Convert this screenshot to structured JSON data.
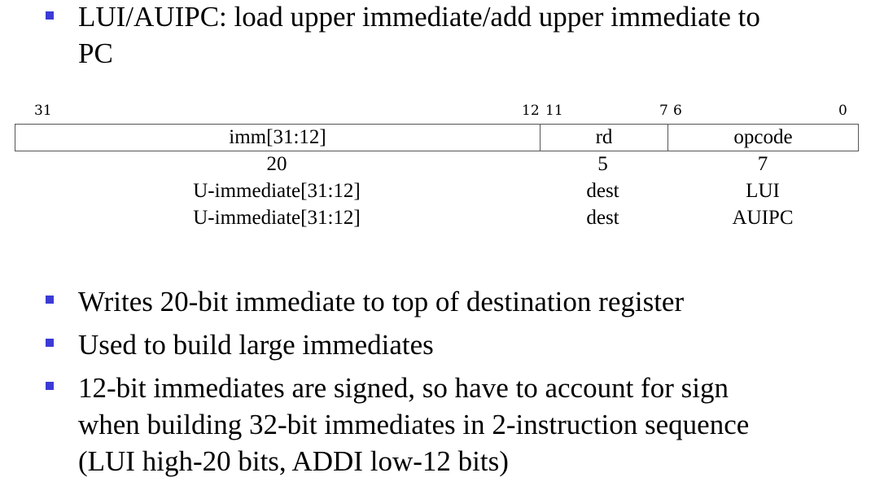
{
  "title_bullet": "LUI/AUIPC: load upper immediate/add upper immediate to\nPC",
  "format": {
    "bit_labels": [
      "31",
      "12",
      "11",
      "7",
      "6",
      "0"
    ],
    "fields": [
      "imm[31:12]",
      "rd",
      "opcode"
    ],
    "widths": [
      "20",
      "5",
      "7"
    ],
    "rows": [
      [
        "U-immediate[31:12]",
        "dest",
        "LUI"
      ],
      [
        "U-immediate[31:12]",
        "dest",
        "AUIPC"
      ]
    ]
  },
  "bullets": [
    "Writes 20-bit immediate to top of destination register",
    "Used to build large immediates",
    "12-bit immediates are signed, so have to account for sign\nwhen building 32-bit immediates in 2-instruction sequence\n(LUI high-20 bits, ADDI low-12 bits)"
  ],
  "colors": {
    "bullet": "#3b3bd6",
    "border": "#555555"
  }
}
